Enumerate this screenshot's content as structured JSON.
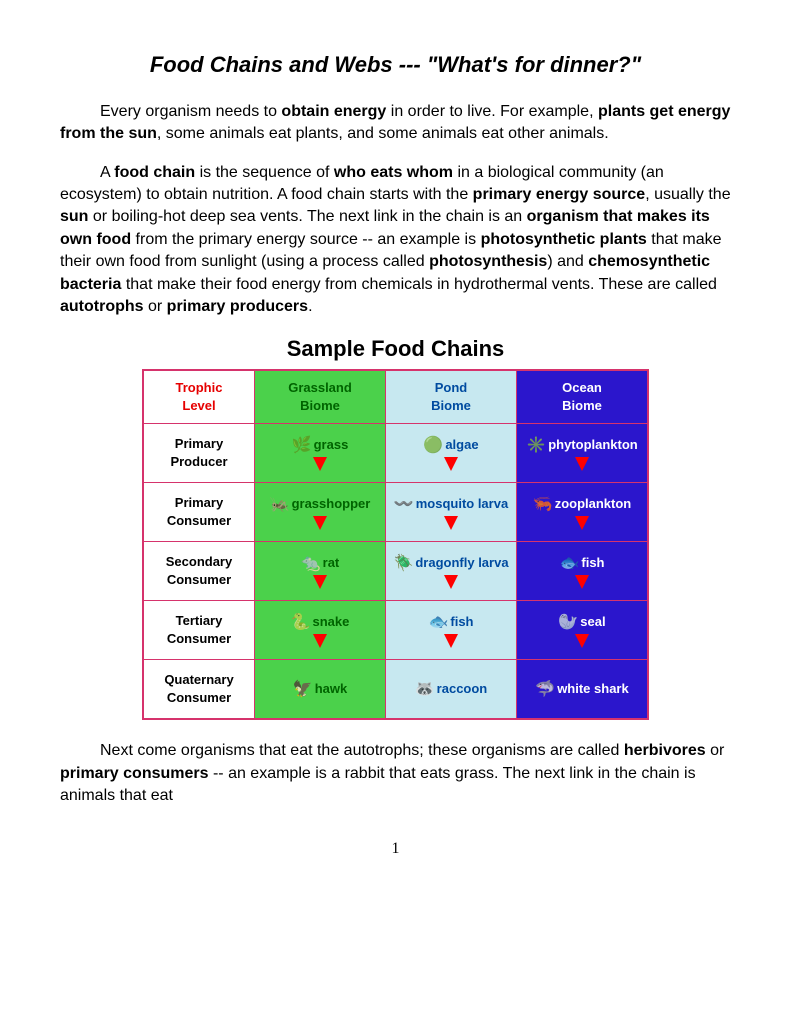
{
  "title": "Food Chains and Webs --- \"What's for dinner?\"",
  "para1": {
    "a": "Every organism needs to ",
    "b": "obtain energy",
    "c": " in order to live.  For example, ",
    "d": "plants get energy from the sun",
    "e": ", some animals eat plants, and some animals eat other animals."
  },
  "para2": {
    "a": "A ",
    "b": "food chain",
    "c": " is the sequence of ",
    "d": "who eats whom",
    "e": " in a biological community (an ecosystem) to obtain nutrition.  A food chain starts with the ",
    "f": "primary energy source",
    "g": ", usually the ",
    "h": "sun",
    "i": " or boiling-hot deep sea vents.  The next link in the chain is an ",
    "j": "organism that makes its own food",
    "k": " from the primary energy source -- an example is ",
    "l": "photosynthetic plants",
    "m": " that make their own food from sunlight (using a process called ",
    "n": "photosynthesis",
    "o": ") and ",
    "p": "chemosynthetic bacteria",
    "q": " that make their food energy from chemicals in hydrothermal vents.  These are called ",
    "r": "autotrophs",
    "s": " or ",
    "t": "primary producers",
    "u": "."
  },
  "table": {
    "title": "Sample Food Chains",
    "colors": {
      "border": "#d6336c",
      "grass_bg": "#4bd14b",
      "pond_bg": "#c7e8f0",
      "ocean_bg": "#2b16cc",
      "level_text": "#e60000",
      "grass_text": "#006400",
      "pond_text": "#004ba0",
      "ocean_text": "#ffffff"
    },
    "headers": {
      "level1": "Trophic",
      "level2": "Level",
      "grass1": "Grassland",
      "grass2": "Biome",
      "pond1": "Pond",
      "pond2": "Biome",
      "ocean1": "Ocean",
      "ocean2": "Biome"
    },
    "rows": [
      {
        "level1": "Primary",
        "level2": "Producer",
        "grass": "grass",
        "pond": "algae",
        "ocean": "phytoplankton"
      },
      {
        "level1": "Primary",
        "level2": "Consumer",
        "grass": "grasshopper",
        "pond": "mosquito larva",
        "ocean": "zooplankton"
      },
      {
        "level1": "Secondary",
        "level2": "Consumer",
        "grass": "rat",
        "pond": "dragonfly larva",
        "ocean": "fish"
      },
      {
        "level1": "Tertiary",
        "level2": "Consumer",
        "grass": "snake",
        "pond": "fish",
        "ocean": "seal"
      },
      {
        "level1": "Quaternary",
        "level2": "Consumer",
        "grass": "hawk",
        "pond": "raccoon",
        "ocean": "white shark"
      }
    ]
  },
  "para3": {
    "a": "Next come organisms that eat the autotrophs; these organisms are called ",
    "b": "herbivores",
    "c": " or ",
    "d": "primary consumers",
    "e": " -- an example is a rabbit that eats grass.  The next link in the chain is animals that eat"
  },
  "pagenum": "1"
}
